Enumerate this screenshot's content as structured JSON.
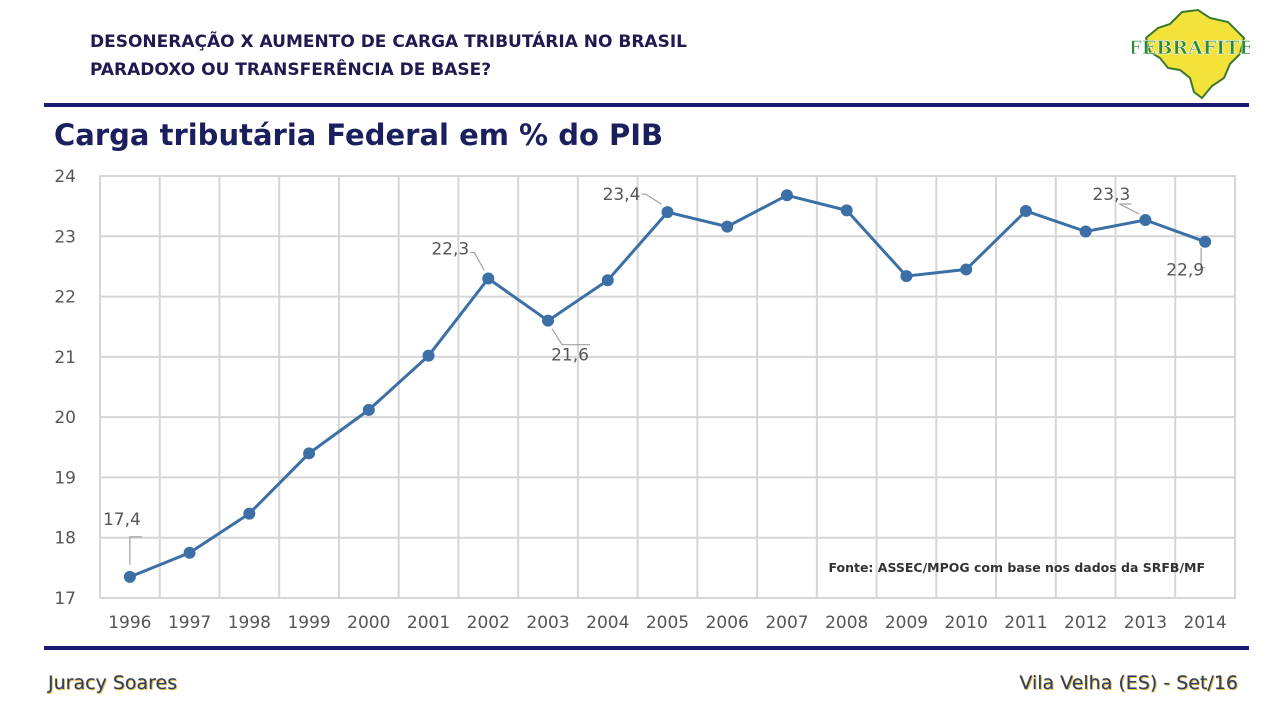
{
  "header": {
    "line1": "DESONERAÇÃO X AUMENTO DE CARGA TRIBUTÁRIA NO BRASIL",
    "line2": "PARADOXO OU TRANSFERÊNCIA DE BASE?"
  },
  "logo": {
    "text": "FEBRAFITE",
    "icon": "brazil-map-logo"
  },
  "slide_title": "Carga tributária Federal em % do PIB",
  "footer": {
    "left": "Juracy Soares",
    "right": "Vila Velha (ES) - Set/16"
  },
  "colors": {
    "line": "#3b6fa5",
    "marker": "#3b6fa5",
    "rule": "#1a1a6e",
    "title": "#1b1f5e"
  },
  "chart_data": {
    "type": "line",
    "title": "Carga tributária Federal em % do PIB",
    "xlabel": "",
    "ylabel": "",
    "categories": [
      "1996",
      "1997",
      "1998",
      "1999",
      "2000",
      "2001",
      "2002",
      "2003",
      "2004",
      "2005",
      "2006",
      "2007",
      "2008",
      "2009",
      "2010",
      "2011",
      "2012",
      "2013",
      "2014"
    ],
    "values": [
      17.35,
      17.75,
      18.4,
      19.4,
      20.12,
      21.02,
      22.3,
      21.6,
      22.27,
      23.4,
      23.16,
      23.68,
      23.43,
      22.34,
      22.45,
      23.42,
      23.08,
      23.27,
      22.91
    ],
    "ylim": [
      17,
      24
    ],
    "yticks": [
      "17",
      "18",
      "19",
      "20",
      "21",
      "22",
      "23",
      "24"
    ],
    "grid": true,
    "annotations": [
      {
        "index": 0,
        "label": "17,4"
      },
      {
        "index": 6,
        "label": "22,3"
      },
      {
        "index": 7,
        "label": "21,6"
      },
      {
        "index": 9,
        "label": "23,4"
      },
      {
        "index": 17,
        "label": "23,3"
      },
      {
        "index": 18,
        "label": "22,9"
      }
    ],
    "source": "Fonte: ASSEC/MPOG com base nos dados da SRFB/MF"
  }
}
